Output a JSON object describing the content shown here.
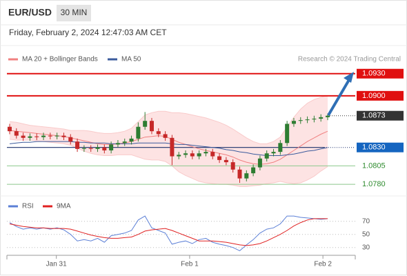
{
  "chart_data": [
    {
      "type": "candlestick",
      "title": "EUR/USD",
      "timeframe": "30 MIN",
      "subtitle": "Friday, February 2, 2024 12:47:03 AM CET",
      "source": "Research © 2024 Trading Central",
      "xlim": [
        0,
        47
      ],
      "ylim": [
        1.0768,
        1.0941
      ],
      "up_color": "#2e7d32",
      "down_color": "#c62828",
      "open": [
        1.0858,
        1.0852,
        1.0846,
        1.0843,
        1.0845,
        1.0844,
        1.0846,
        1.0845,
        1.0846,
        1.0844,
        1.0838,
        1.0828,
        1.0829,
        1.0828,
        1.083,
        1.0826,
        1.0834,
        1.0836,
        1.0838,
        1.0842,
        1.0858,
        1.0866,
        1.0852,
        1.0848,
        1.0843,
        1.0818,
        1.082,
        1.0822,
        1.0818,
        1.0822,
        1.0824,
        1.0818,
        1.0813,
        1.081,
        1.08,
        1.0788,
        1.0795,
        1.0803,
        1.0815,
        1.0822,
        1.0824,
        1.0836,
        1.0862,
        1.0866,
        1.0867,
        1.0868,
        1.0869,
        1.0871
      ],
      "high": [
        1.0862,
        1.0856,
        1.085,
        1.0849,
        1.0849,
        1.085,
        1.085,
        1.085,
        1.085,
        1.0848,
        1.0842,
        1.0833,
        1.0833,
        1.0834,
        1.0834,
        1.0838,
        1.084,
        1.0842,
        1.0846,
        1.0864,
        1.0878,
        1.087,
        1.0856,
        1.0852,
        1.0847,
        1.0824,
        1.0826,
        1.0826,
        1.0826,
        1.0828,
        1.0828,
        1.0822,
        1.0817,
        1.0814,
        1.0804,
        1.0799,
        1.0807,
        1.0819,
        1.0826,
        1.0828,
        1.084,
        1.0866,
        1.087,
        1.0871,
        1.0872,
        1.0873,
        1.0875,
        1.0876
      ],
      "low": [
        1.0848,
        1.0842,
        1.0839,
        1.0839,
        1.084,
        1.084,
        1.0841,
        1.0841,
        1.084,
        1.0834,
        1.0824,
        1.0824,
        1.0824,
        1.0824,
        1.0822,
        1.0822,
        1.083,
        1.0832,
        1.0834,
        1.0838,
        1.0854,
        1.0848,
        1.0844,
        1.0839,
        1.0806,
        1.0814,
        1.0816,
        1.0814,
        1.0814,
        1.0818,
        1.0814,
        1.0809,
        1.0806,
        1.0796,
        1.0782,
        1.0784,
        1.0791,
        1.0799,
        1.0811,
        1.0818,
        1.082,
        1.0832,
        1.0858,
        1.0862,
        1.0863,
        1.0864,
        1.0865,
        1.0867
      ],
      "close": [
        1.0852,
        1.0846,
        1.0843,
        1.0845,
        1.0844,
        1.0846,
        1.0845,
        1.0846,
        1.0844,
        1.0838,
        1.0828,
        1.0829,
        1.0828,
        1.083,
        1.0826,
        1.0834,
        1.0836,
        1.0838,
        1.0842,
        1.0858,
        1.0866,
        1.0852,
        1.0848,
        1.0843,
        1.0818,
        1.082,
        1.0822,
        1.0818,
        1.0822,
        1.0824,
        1.0818,
        1.0813,
        1.081,
        1.08,
        1.0788,
        1.0795,
        1.0803,
        1.0815,
        1.0822,
        1.0824,
        1.0836,
        1.0862,
        1.0866,
        1.0867,
        1.0868,
        1.0869,
        1.0871,
        1.0873
      ],
      "series": [
        {
          "name": "MA 20 + Bollinger Bands",
          "color": "#f08080",
          "values": [
            1.0853,
            1.0852,
            1.0851,
            1.085,
            1.0849,
            1.0848,
            1.0847,
            1.0846,
            1.0845,
            1.0843,
            1.0841,
            1.0839,
            1.0837,
            1.0835,
            1.0834,
            1.0834,
            1.0835,
            1.0836,
            1.0838,
            1.0841,
            1.0844,
            1.0845,
            1.0846,
            1.0845,
            1.0841,
            1.0837,
            1.0834,
            1.0831,
            1.0828,
            1.0826,
            1.0824,
            1.0822,
            1.082,
            1.0817,
            1.0813,
            1.081,
            1.0808,
            1.0807,
            1.0808,
            1.081,
            1.0814,
            1.082,
            1.0826,
            1.0832,
            1.0838,
            1.0843,
            1.0848,
            1.0852
          ]
        },
        {
          "name": "MA 50",
          "color": "#3a5a9c",
          "values": [
            1.0835,
            1.0836,
            1.0837,
            1.0837,
            1.0838,
            1.0838,
            1.0838,
            1.0838,
            1.0838,
            1.0838,
            1.0837,
            1.0837,
            1.0836,
            1.0836,
            1.0836,
            1.0835,
            1.0835,
            1.0835,
            1.0835,
            1.0836,
            1.0836,
            1.0836,
            1.0836,
            1.0836,
            1.0835,
            1.0834,
            1.0834,
            1.0833,
            1.0832,
            1.0831,
            1.083,
            1.0829,
            1.0827,
            1.0826,
            1.0824,
            1.0823,
            1.0821,
            1.082,
            1.0819,
            1.0819,
            1.0819,
            1.082,
            1.0821,
            1.0823,
            1.0825,
            1.0826,
            1.0828,
            1.083
          ]
        }
      ],
      "bands": {
        "color": "#fde3e3",
        "upper": [
          1.0865,
          1.0864,
          1.0862,
          1.086,
          1.0859,
          1.0858,
          1.0857,
          1.0856,
          1.0855,
          1.0853,
          1.0853,
          1.0853,
          1.0852,
          1.085,
          1.0849,
          1.0849,
          1.085,
          1.0852,
          1.0856,
          1.0865,
          1.0874,
          1.0877,
          1.0879,
          1.0879,
          1.0877,
          1.0877,
          1.0876,
          1.0874,
          1.0872,
          1.087,
          1.0867,
          1.0864,
          1.086,
          1.0855,
          1.0849,
          1.0843,
          1.0838,
          1.0835,
          1.0835,
          1.0838,
          1.0844,
          1.0858,
          1.0871,
          1.0882,
          1.089,
          1.0895,
          1.0898,
          1.09
        ],
        "lower": [
          1.0841,
          1.084,
          1.084,
          1.084,
          1.0839,
          1.0838,
          1.0837,
          1.0836,
          1.0835,
          1.0833,
          1.0829,
          1.0825,
          1.0822,
          1.082,
          1.0819,
          1.0819,
          1.082,
          1.082,
          1.082,
          1.0817,
          1.0814,
          1.0813,
          1.0813,
          1.0811,
          1.0805,
          1.0797,
          1.0792,
          1.0788,
          1.0784,
          1.0782,
          1.0781,
          1.078,
          1.078,
          1.0779,
          1.0777,
          1.0777,
          1.0778,
          1.0779,
          1.0781,
          1.0782,
          1.0784,
          1.0782,
          1.0781,
          1.0782,
          1.0786,
          1.0791,
          1.0798,
          1.0804
        ]
      },
      "levels": [
        {
          "value": 1.093,
          "label": "1.0930",
          "color": "#e01010",
          "kind": "resistance"
        },
        {
          "value": 1.09,
          "label": "1.0900",
          "color": "#e01010",
          "kind": "resistance"
        },
        {
          "value": 1.0873,
          "label": "1.0873",
          "color": "#333333",
          "kind": "last"
        },
        {
          "value": 1.083,
          "label": "1.0830",
          "color": "#1565c0",
          "kind": "pivot"
        },
        {
          "value": 1.0805,
          "label": "1.0805",
          "color": "#2e8b2e",
          "kind": "support"
        },
        {
          "value": 1.078,
          "label": "1.0780",
          "color": "#2e8b2e",
          "kind": "support"
        }
      ]
    },
    {
      "type": "line",
      "xlim": [
        0,
        47
      ],
      "ylim": [
        16,
        105
      ],
      "yticks": [
        30,
        50,
        70
      ],
      "xticks": [
        {
          "value": 6.9,
          "label": "Jan 31"
        },
        {
          "value": 26.6,
          "label": "Feb 1"
        },
        {
          "value": 46.3,
          "label": "Feb 2"
        }
      ],
      "series": [
        {
          "name": "RSI",
          "color": "#5b7fd6",
          "values": [
            68,
            62,
            58,
            60,
            58,
            60,
            58,
            60,
            57,
            50,
            40,
            42,
            40,
            44,
            38,
            48,
            50,
            52,
            56,
            72,
            78,
            60,
            56,
            52,
            35,
            38,
            40,
            36,
            42,
            44,
            38,
            35,
            33,
            30,
            25,
            34,
            42,
            52,
            58,
            60,
            66,
            78,
            78,
            76,
            75,
            74,
            73,
            74
          ]
        },
        {
          "name": "9MA",
          "color": "#e02020",
          "values": [
            66,
            64,
            62,
            61,
            60,
            60,
            59,
            59,
            59,
            58,
            55,
            52,
            49,
            47,
            45,
            44,
            44,
            45,
            46,
            50,
            55,
            57,
            58,
            59,
            56,
            52,
            48,
            44,
            40,
            40,
            40,
            39,
            38,
            36,
            34,
            33,
            34,
            36,
            40,
            45,
            50,
            56,
            63,
            68,
            72,
            74,
            74,
            74
          ]
        }
      ]
    }
  ]
}
